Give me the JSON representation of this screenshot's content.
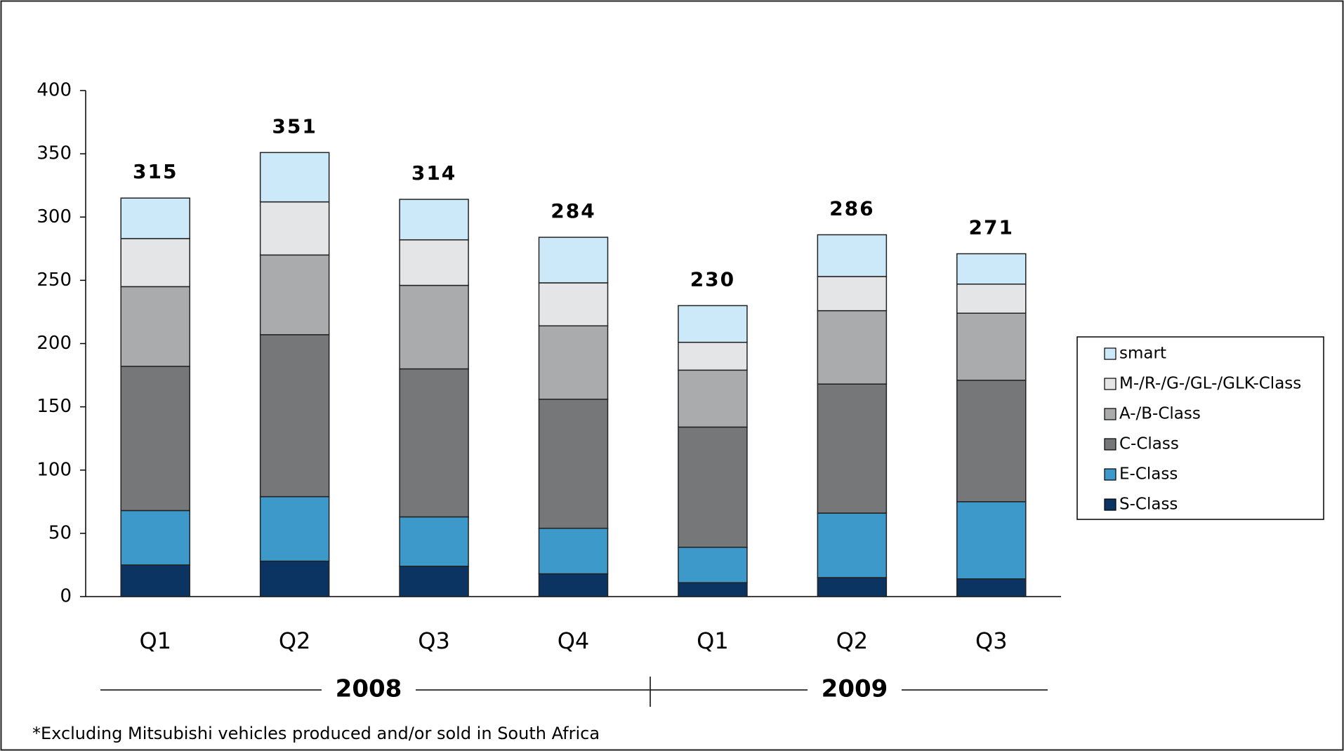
{
  "chart_data": {
    "type": "stacked-bar",
    "categories": [
      "Q1",
      "Q2",
      "Q3",
      "Q4",
      "Q1",
      "Q2",
      "Q3"
    ],
    "groups": [
      "2008",
      "2009"
    ],
    "series": [
      {
        "name": "S-Class",
        "color": "#0b3463",
        "values": [
          25,
          28,
          24,
          18,
          11,
          15,
          14
        ]
      },
      {
        "name": "E-Class",
        "color": "#3d99c9",
        "values": [
          43,
          51,
          39,
          36,
          28,
          51,
          61
        ]
      },
      {
        "name": "C-Class",
        "color": "#767778",
        "values": [
          114,
          128,
          117,
          102,
          95,
          102,
          96
        ]
      },
      {
        "name": "A-/B-Class",
        "color": "#a9abad",
        "values": [
          63,
          63,
          66,
          58,
          45,
          58,
          53
        ]
      },
      {
        "name": "M-/R-/G-/GL-/GLK-Class",
        "color": "#e4e5e6",
        "values": [
          38,
          42,
          36,
          34,
          22,
          27,
          23
        ]
      },
      {
        "name": "smart",
        "color": "#cce9fa",
        "values": [
          32,
          39,
          32,
          36,
          29,
          33,
          24
        ]
      }
    ],
    "totals": [
      315,
      351,
      314,
      284,
      230,
      286,
      271
    ],
    "ylim": [
      0,
      400
    ],
    "yticks": [
      0,
      50,
      100,
      150,
      200,
      250,
      300,
      350,
      400
    ],
    "legend": "right",
    "footnote": "*Excluding Mitsubishi vehicles produced and/or sold in South Africa"
  }
}
